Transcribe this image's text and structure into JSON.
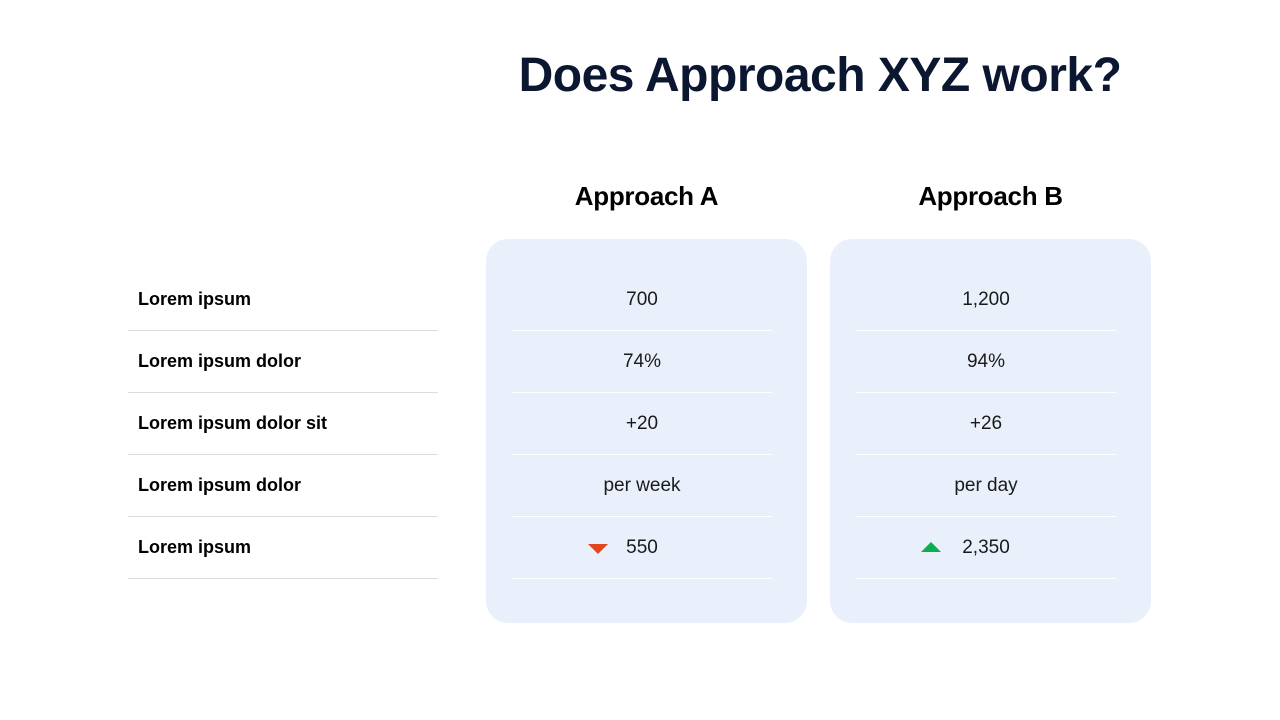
{
  "title": "Does Approach XYZ work?",
  "columns": [
    {
      "header": "Approach A"
    },
    {
      "header": "Approach B"
    }
  ],
  "rows": [
    {
      "label": "Lorem ipsum",
      "a": "700",
      "b": "1,200"
    },
    {
      "label": "Lorem ipsum dolor",
      "a": "74%",
      "b": "94%"
    },
    {
      "label": "Lorem ipsum dolor sit",
      "a": "+20",
      "b": "+26"
    },
    {
      "label": "Lorem ipsum dolor",
      "a": "per week",
      "b": "per day"
    },
    {
      "label": "Lorem ipsum",
      "a": "550",
      "b": "2,350"
    }
  ],
  "indicators": {
    "a_trend": "down-triangle-icon",
    "b_trend": "up-triangle-icon"
  },
  "colors": {
    "title": "#0b1730",
    "card_background": "#e9effb",
    "down": "#e2461e",
    "up": "#0aad4f"
  }
}
